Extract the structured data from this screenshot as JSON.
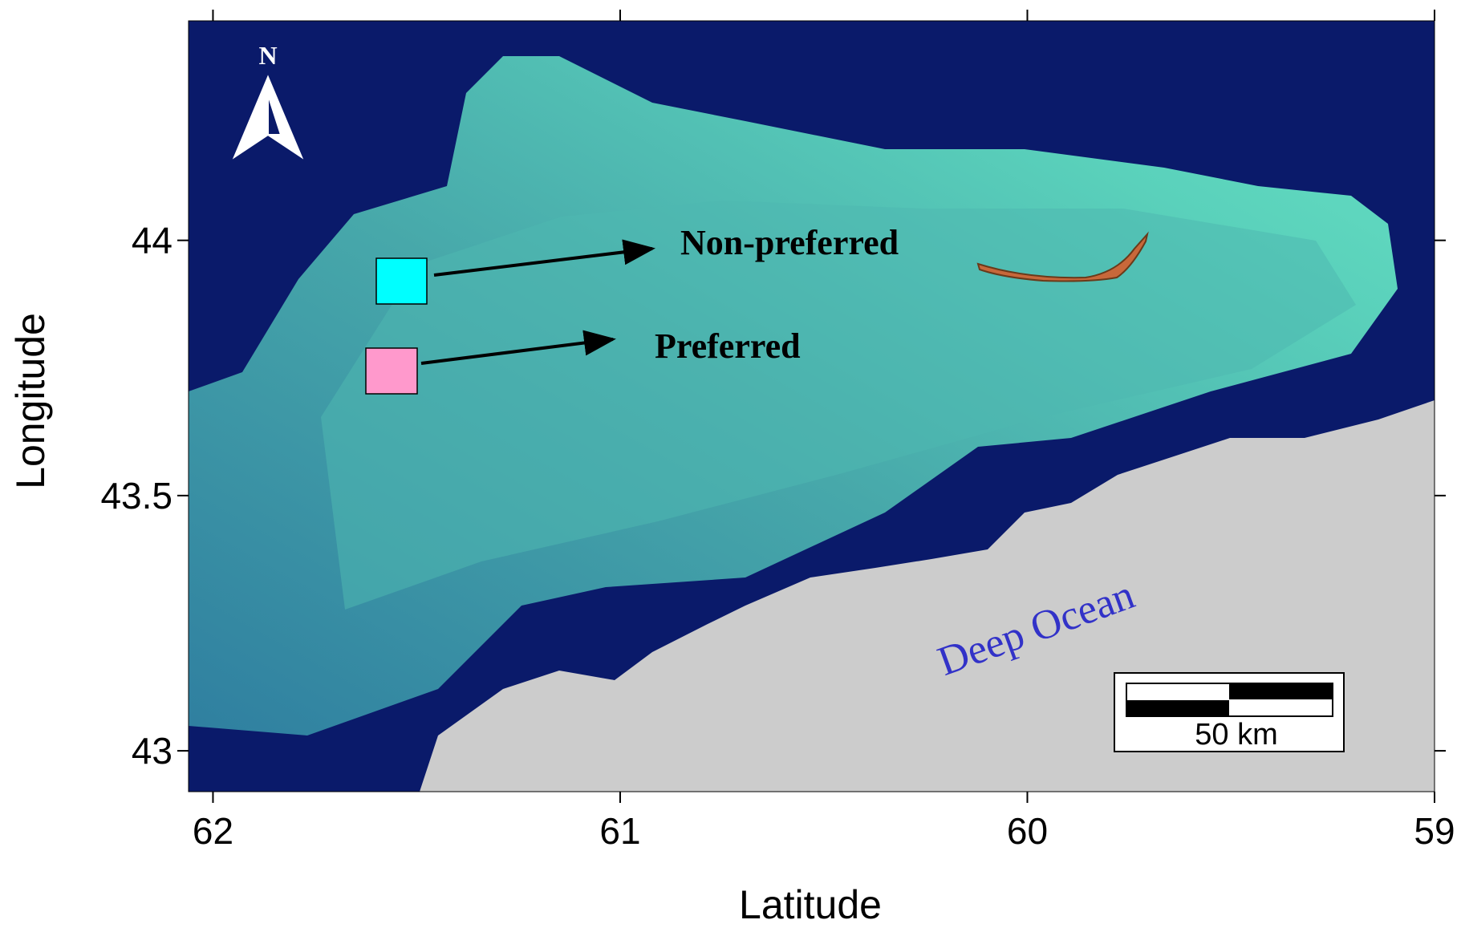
{
  "map": {
    "x_axis_label": "Latitude",
    "y_axis_label": "Longitude",
    "xlim": [
      62.06,
      59
    ],
    "ylim": [
      42.92,
      44.43
    ],
    "xticks": [
      62,
      61,
      60,
      59
    ],
    "yticks": [
      43,
      43.5,
      44
    ],
    "north_label": "N",
    "annotations": [
      "Non-preferred",
      "Preferred",
      "Deep Ocean"
    ],
    "scale_bar_label": "50 km"
  }
}
